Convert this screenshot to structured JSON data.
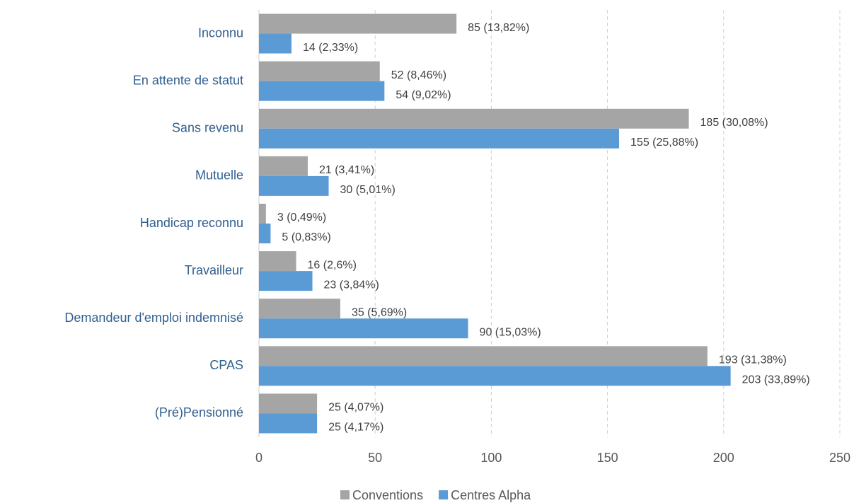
{
  "chart_data": {
    "type": "hbar",
    "categories": [
      "Inconnu",
      "En attente de statut",
      "Sans revenu",
      "Mutuelle",
      "Handicap reconnu",
      "Travailleur",
      "Demandeur d'emploi indemnisé",
      "CPAS",
      "(Pré)Pensionné"
    ],
    "series": [
      {
        "name": "Conventions",
        "color": "#a5a5a5",
        "values": [
          85,
          52,
          185,
          21,
          3,
          16,
          35,
          193,
          25
        ],
        "value_labels": [
          "85 (13,82%)",
          "52 (8,46%)",
          "185 (30,08%)",
          "21 (3,41%)",
          "3 (0,49%)",
          "16 (2,6%)",
          "35 (5,69%)",
          "193 (31,38%)",
          "25 (4,07%)"
        ]
      },
      {
        "name": "Centres Alpha",
        "color": "#5b9bd5",
        "values": [
          14,
          54,
          155,
          30,
          5,
          23,
          90,
          203,
          25
        ],
        "value_labels": [
          "14 (2,33%)",
          "54 (9,02%)",
          "155 (25,88%)",
          "30 (5,01%)",
          "5 (0,83%)",
          "23 (3,84%)",
          "90 (15,03%)",
          "203 (33,89%)",
          "25 (4,17%)"
        ]
      }
    ],
    "xlim": [
      0,
      250
    ],
    "xticks": [
      0,
      50,
      100,
      150,
      200,
      250
    ],
    "grid": true,
    "legend": "bottom"
  }
}
